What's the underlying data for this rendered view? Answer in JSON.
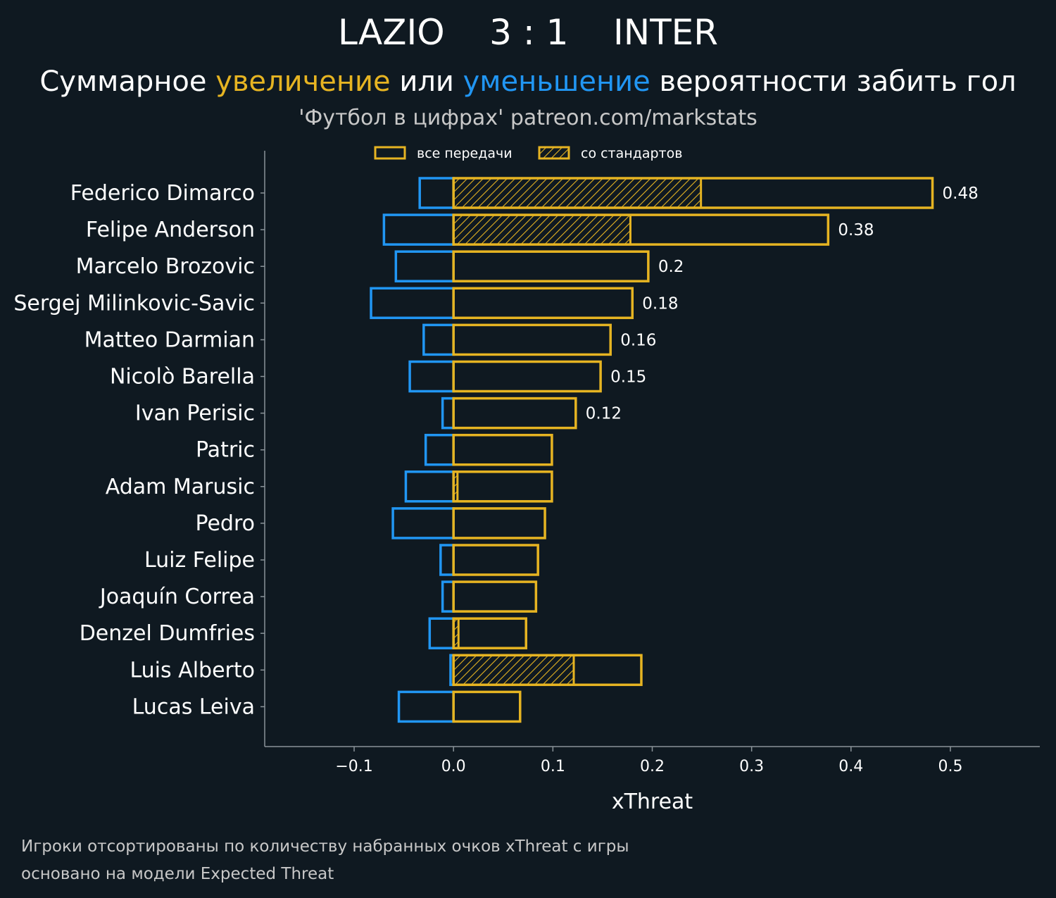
{
  "header": {
    "title": "LAZIO    3 : 1    INTER",
    "subtitle_part1": "Суммарное ",
    "subtitle_inc": "увеличение",
    "subtitle_part2": " или ",
    "subtitle_dec": "уменьшение",
    "subtitle_part3": " вероятности забить гол",
    "source": "'Футбол в цифрах' patreon.com/markstats"
  },
  "footer": {
    "line1": "Игроки отсортированы по количеству набранных очков xThreat с игры",
    "line2": "основано на модели Expected Threat"
  },
  "colors": {
    "background": "#0f1921",
    "positive": "#e6b422",
    "negative": "#2196f3",
    "axis": "#8a9399",
    "text": "#ffffff"
  },
  "chart_data": {
    "type": "bar",
    "orientation": "horizontal",
    "xlabel": "xThreat",
    "xlim": [
      -0.19,
      0.59
    ],
    "xticks": [
      -0.1,
      0.0,
      0.1,
      0.2,
      0.3,
      0.4,
      0.5
    ],
    "xtick_labels": [
      "−0.1",
      "0.0",
      "0.1",
      "0.2",
      "0.3",
      "0.4",
      "0.5"
    ],
    "legend": {
      "placement": "top-center",
      "items": [
        {
          "label": "все передачи",
          "style": "outline"
        },
        {
          "label": "со стандартов",
          "style": "hatched"
        }
      ]
    },
    "players": [
      {
        "name": "Federico Dimarco",
        "positive": 0.482,
        "negative": -0.034,
        "set_piece": 0.249,
        "label": "0.48"
      },
      {
        "name": "Felipe Anderson",
        "positive": 0.377,
        "negative": -0.07,
        "set_piece": 0.178,
        "label": "0.38"
      },
      {
        "name": "Marcelo Brozovic",
        "positive": 0.196,
        "negative": -0.058,
        "set_piece": 0,
        "label": "0.2"
      },
      {
        "name": "Sergej Milinkovic-Savic",
        "positive": 0.18,
        "negative": -0.083,
        "set_piece": 0,
        "label": "0.18"
      },
      {
        "name": "Matteo Darmian",
        "positive": 0.158,
        "negative": -0.03,
        "set_piece": 0,
        "label": "0.16"
      },
      {
        "name": "Nicolò Barella",
        "positive": 0.148,
        "negative": -0.044,
        "set_piece": 0,
        "label": "0.15"
      },
      {
        "name": "Ivan Perisic",
        "positive": 0.123,
        "negative": -0.011,
        "set_piece": 0,
        "label": "0.12"
      },
      {
        "name": "Patric",
        "positive": 0.099,
        "negative": -0.028,
        "set_piece": 0,
        "label": ""
      },
      {
        "name": "Adam Marusic",
        "positive": 0.099,
        "negative": -0.048,
        "set_piece": 0.004,
        "label": ""
      },
      {
        "name": "Pedro",
        "positive": 0.092,
        "negative": -0.061,
        "set_piece": 0,
        "label": ""
      },
      {
        "name": "Luiz Felipe",
        "positive": 0.085,
        "negative": -0.013,
        "set_piece": 0,
        "label": ""
      },
      {
        "name": "Joaquín Correa",
        "positive": 0.083,
        "negative": -0.011,
        "set_piece": 0,
        "label": ""
      },
      {
        "name": "Denzel Dumfries",
        "positive": 0.073,
        "negative": -0.024,
        "set_piece": 0.005,
        "label": ""
      },
      {
        "name": "Luis Alberto",
        "positive": 0.189,
        "negative": -0.003,
        "set_piece": 0.121,
        "label": ""
      },
      {
        "name": "Lucas Leiva",
        "positive": 0.067,
        "negative": -0.055,
        "set_piece": 0,
        "label": ""
      }
    ]
  }
}
